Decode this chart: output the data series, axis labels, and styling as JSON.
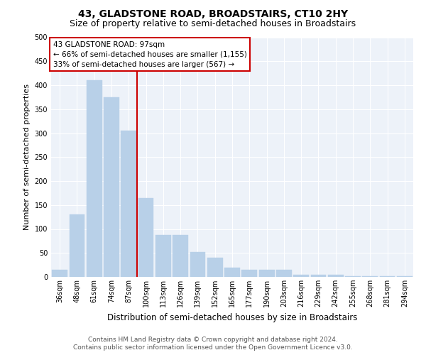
{
  "title1": "43, GLADSTONE ROAD, BROADSTAIRS, CT10 2HY",
  "title2": "Size of property relative to semi-detached houses in Broadstairs",
  "xlabel": "Distribution of semi-detached houses by size in Broadstairs",
  "ylabel": "Number of semi-detached properties",
  "categories": [
    "36sqm",
    "48sqm",
    "61sqm",
    "74sqm",
    "87sqm",
    "100sqm",
    "113sqm",
    "126sqm",
    "139sqm",
    "152sqm",
    "165sqm",
    "177sqm",
    "190sqm",
    "203sqm",
    "216sqm",
    "229sqm",
    "242sqm",
    "255sqm",
    "268sqm",
    "281sqm",
    "294sqm"
  ],
  "values": [
    15,
    130,
    410,
    375,
    305,
    165,
    88,
    88,
    52,
    40,
    20,
    15,
    15,
    15,
    5,
    5,
    5,
    2,
    2,
    2,
    2
  ],
  "bar_color": "#b8d0e8",
  "bar_edge_color": "#b8d0e8",
  "vline_color": "#cc0000",
  "annotation_title": "43 GLADSTONE ROAD: 97sqm",
  "annotation_line1": "← 66% of semi-detached houses are smaller (1,155)",
  "annotation_line2": "33% of semi-detached houses are larger (567) →",
  "annotation_box_color": "#cc0000",
  "ylim": [
    0,
    500
  ],
  "yticks": [
    0,
    50,
    100,
    150,
    200,
    250,
    300,
    350,
    400,
    450,
    500
  ],
  "footer1": "Contains HM Land Registry data © Crown copyright and database right 2024.",
  "footer2": "Contains public sector information licensed under the Open Government Licence v3.0.",
  "bg_color": "#edf2f9",
  "grid_color": "#ffffff",
  "title1_fontsize": 10,
  "title2_fontsize": 9,
  "tick_fontsize": 7,
  "ylabel_fontsize": 8,
  "xlabel_fontsize": 8.5,
  "footer_fontsize": 6.5,
  "ann_fontsize": 7.5
}
